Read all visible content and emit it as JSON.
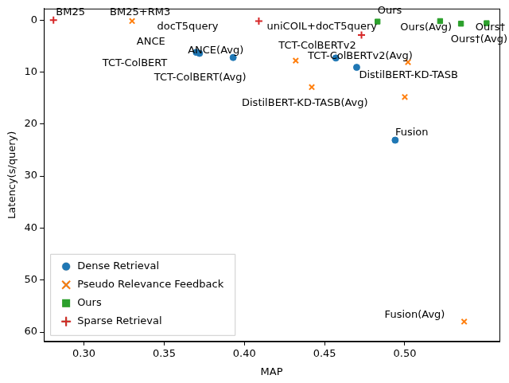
{
  "chart_data": {
    "type": "scatter",
    "x_label": "MAP",
    "y_label": "Latency(s/query)",
    "xlim": [
      0.275,
      0.559
    ],
    "ylim": [
      -2.2,
      61.8
    ],
    "xticks": [
      {
        "value": 0.3,
        "label": "0.30"
      },
      {
        "value": 0.35,
        "label": "0.35"
      },
      {
        "value": 0.4,
        "label": "0.40"
      },
      {
        "value": 0.45,
        "label": "0.45"
      },
      {
        "value": 0.5,
        "label": "0.50"
      }
    ],
    "yticks": [
      0,
      10,
      20,
      30,
      40,
      50,
      60
    ],
    "y_reversed": true,
    "grid": false,
    "legend": "lower left",
    "series": [
      {
        "name": "Dense Retrieval",
        "color": "#1f77b4",
        "marker": "circle",
        "labels": [
          "TCT-ColBERT",
          "ANCE",
          "ANCE(Avg)",
          "TCT-ColBERTv2",
          "DistilBERT-KD-TASB",
          "Fusion"
        ],
        "x": [
          0.372,
          0.37,
          0.393,
          0.457,
          0.47,
          0.494
        ],
        "values": [
          6.4,
          6.2,
          7.2,
          7.3,
          9.1,
          23.1
        ]
      },
      {
        "name": "Pseudo Relevance Feedback",
        "color": "#ff7f0e",
        "marker": "x",
        "labels": [
          "BM25+RM3",
          "TCT-ColBERT(Avg)",
          "DistilBERT-KD-TASB(Avg)",
          null,
          "TCT-ColBERTv2(Avg)",
          "Fusion(Avg)"
        ],
        "x": [
          0.33,
          0.432,
          0.442,
          0.5,
          0.502,
          0.537
        ],
        "values": [
          0.2,
          7.8,
          12.9,
          14.8,
          8.1,
          58
        ]
      },
      {
        "name": "Ours",
        "color": "#2ca02c",
        "marker": "square",
        "labels": [
          "Ours",
          "Ours(Avg)",
          "Ours†(Avg)",
          "Ours†"
        ],
        "x": [
          0.483,
          0.522,
          0.535,
          0.551
        ],
        "values": [
          0.3,
          0.2,
          0.7,
          0.6
        ]
      },
      {
        "name": "Sparse Retrieval",
        "color": "#d62728",
        "marker": "plus",
        "labels": [
          "BM25",
          "docT5query",
          "uniCOIL+docT5query"
        ],
        "x": [
          0.281,
          0.409,
          0.473
        ],
        "values": [
          0.0,
          0.2,
          2.9
        ]
      }
    ]
  }
}
